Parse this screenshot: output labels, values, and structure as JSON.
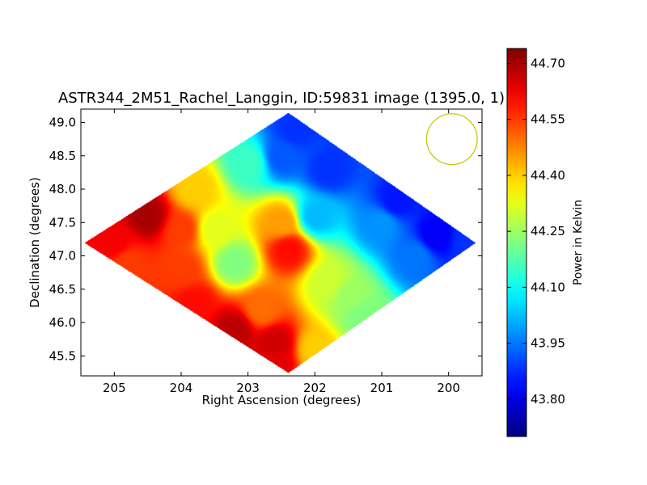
{
  "chart_data": {
    "type": "heatmap",
    "title": "ASTR344_2M51_Rachel_Langgin, ID:59831 image (1395.0, 1)",
    "xlabel": "Right Ascension (degrees)",
    "ylabel": "Declination (degrees)",
    "x_axis_inverted": true,
    "xlim": [
      205.5,
      199.5
    ],
    "ylim": [
      45.2,
      49.2
    ],
    "x_ticks": [
      205,
      204,
      203,
      202,
      201,
      200
    ],
    "x_tick_labels": [
      "205",
      "204",
      "203",
      "202",
      "201",
      "200"
    ],
    "y_ticks": [
      45.5,
      46.0,
      46.5,
      47.0,
      47.5,
      48.0,
      48.5,
      49.0
    ],
    "y_tick_labels": [
      "45.5",
      "46.0",
      "46.5",
      "47.0",
      "47.5",
      "48.0",
      "48.5",
      "49.0"
    ],
    "colorbar": {
      "label": "Power in Kelvin",
      "colormap": "jet",
      "range": [
        43.7,
        44.74
      ],
      "ticks": [
        43.8,
        43.95,
        44.1,
        44.25,
        44.4,
        44.55,
        44.7
      ],
      "tick_labels": [
        "43.80",
        "43.95",
        "44.10",
        "44.25",
        "44.40",
        "44.55",
        "44.70"
      ]
    },
    "map_extent": {
      "ra_min": 199.5,
      "ra_max": 205.45,
      "dec_min": 45.25,
      "dec_max": 49.15,
      "shape": "diamond (rotated square)",
      "corners": [
        {
          "ra": 202.4,
          "dec": 49.15
        },
        {
          "ra": 199.6,
          "dec": 47.2
        },
        {
          "ra": 202.4,
          "dec": 45.25
        },
        {
          "ra": 205.45,
          "dec": 47.2
        }
      ]
    },
    "samples": [
      {
        "ra": 205.0,
        "dec": 47.2,
        "value": 44.62
      },
      {
        "ra": 204.5,
        "dec": 47.6,
        "value": 44.7
      },
      {
        "ra": 204.0,
        "dec": 47.4,
        "value": 44.55
      },
      {
        "ra": 204.0,
        "dec": 46.8,
        "value": 44.55
      },
      {
        "ra": 203.8,
        "dec": 48.0,
        "value": 44.4
      },
      {
        "ra": 203.5,
        "dec": 47.4,
        "value": 44.32
      },
      {
        "ra": 203.2,
        "dec": 46.9,
        "value": 44.22
      },
      {
        "ra": 203.0,
        "dec": 48.4,
        "value": 44.15
      },
      {
        "ra": 202.8,
        "dec": 46.2,
        "value": 44.5
      },
      {
        "ra": 202.6,
        "dec": 45.7,
        "value": 44.66
      },
      {
        "ra": 202.5,
        "dec": 47.5,
        "value": 44.45
      },
      {
        "ra": 202.4,
        "dec": 47.1,
        "value": 44.6
      },
      {
        "ra": 202.5,
        "dec": 48.5,
        "value": 43.92
      },
      {
        "ra": 202.3,
        "dec": 48.9,
        "value": 43.88
      },
      {
        "ra": 201.8,
        "dec": 48.3,
        "value": 43.88
      },
      {
        "ra": 202.0,
        "dec": 47.6,
        "value": 44.02
      },
      {
        "ra": 201.8,
        "dec": 46.6,
        "value": 44.3
      },
      {
        "ra": 201.3,
        "dec": 46.1,
        "value": 44.22
      },
      {
        "ra": 201.0,
        "dec": 47.5,
        "value": 43.98
      },
      {
        "ra": 200.8,
        "dec": 47.8,
        "value": 43.85
      },
      {
        "ra": 200.5,
        "dec": 47.0,
        "value": 43.95
      },
      {
        "ra": 200.2,
        "dec": 47.3,
        "value": 43.82
      },
      {
        "ra": 199.7,
        "dec": 47.2,
        "value": 43.88
      },
      {
        "ra": 204.8,
        "dec": 46.9,
        "value": 44.55
      },
      {
        "ra": 203.8,
        "dec": 46.3,
        "value": 44.6
      },
      {
        "ra": 203.2,
        "dec": 45.9,
        "value": 44.68
      },
      {
        "ra": 202.6,
        "dec": 45.4,
        "value": 44.64
      },
      {
        "ra": 202.0,
        "dec": 45.6,
        "value": 44.4
      },
      {
        "ra": 201.5,
        "dec": 46.4,
        "value": 44.25
      }
    ],
    "beam_marker": {
      "ra": 199.95,
      "dec": 48.75,
      "radius_deg": 0.38,
      "color": "#c8c800"
    }
  }
}
